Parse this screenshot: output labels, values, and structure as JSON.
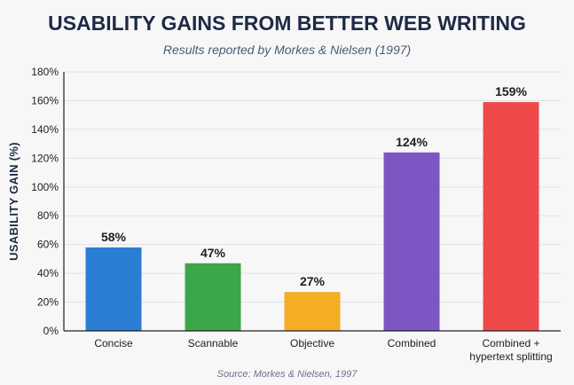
{
  "chart_data": {
    "type": "bar",
    "title": "USABILITY GAINS FROM BETTER WEB WRITING",
    "subtitle": "Results reported by Morkes & Nielsen (1997)",
    "xlabel": "",
    "ylabel": "USABILITY GAIN (%)",
    "categories": [
      [
        "Concise"
      ],
      [
        "Scannable"
      ],
      [
        "Objective"
      ],
      [
        "Combined"
      ],
      [
        "Combined +",
        "hypertext splitting"
      ]
    ],
    "values": [
      58,
      47,
      27,
      124,
      159
    ],
    "data_labels": [
      "58%",
      "47%",
      "27%",
      "124%",
      "159%"
    ],
    "colors": [
      "#2a7fd4",
      "#3ca64a",
      "#f4ad25",
      "#7c56c2",
      "#ef4a4a"
    ],
    "ylim": [
      0,
      180
    ],
    "yticks": [
      0,
      20,
      40,
      60,
      80,
      100,
      120,
      140,
      160,
      180
    ],
    "ytick_labels": [
      "0%",
      "20%",
      "40%",
      "60%",
      "80%",
      "100%",
      "120%",
      "140%",
      "160%",
      "180%"
    ],
    "grid": true,
    "source": "Source: Morkes & Nielsen, 1997"
  }
}
